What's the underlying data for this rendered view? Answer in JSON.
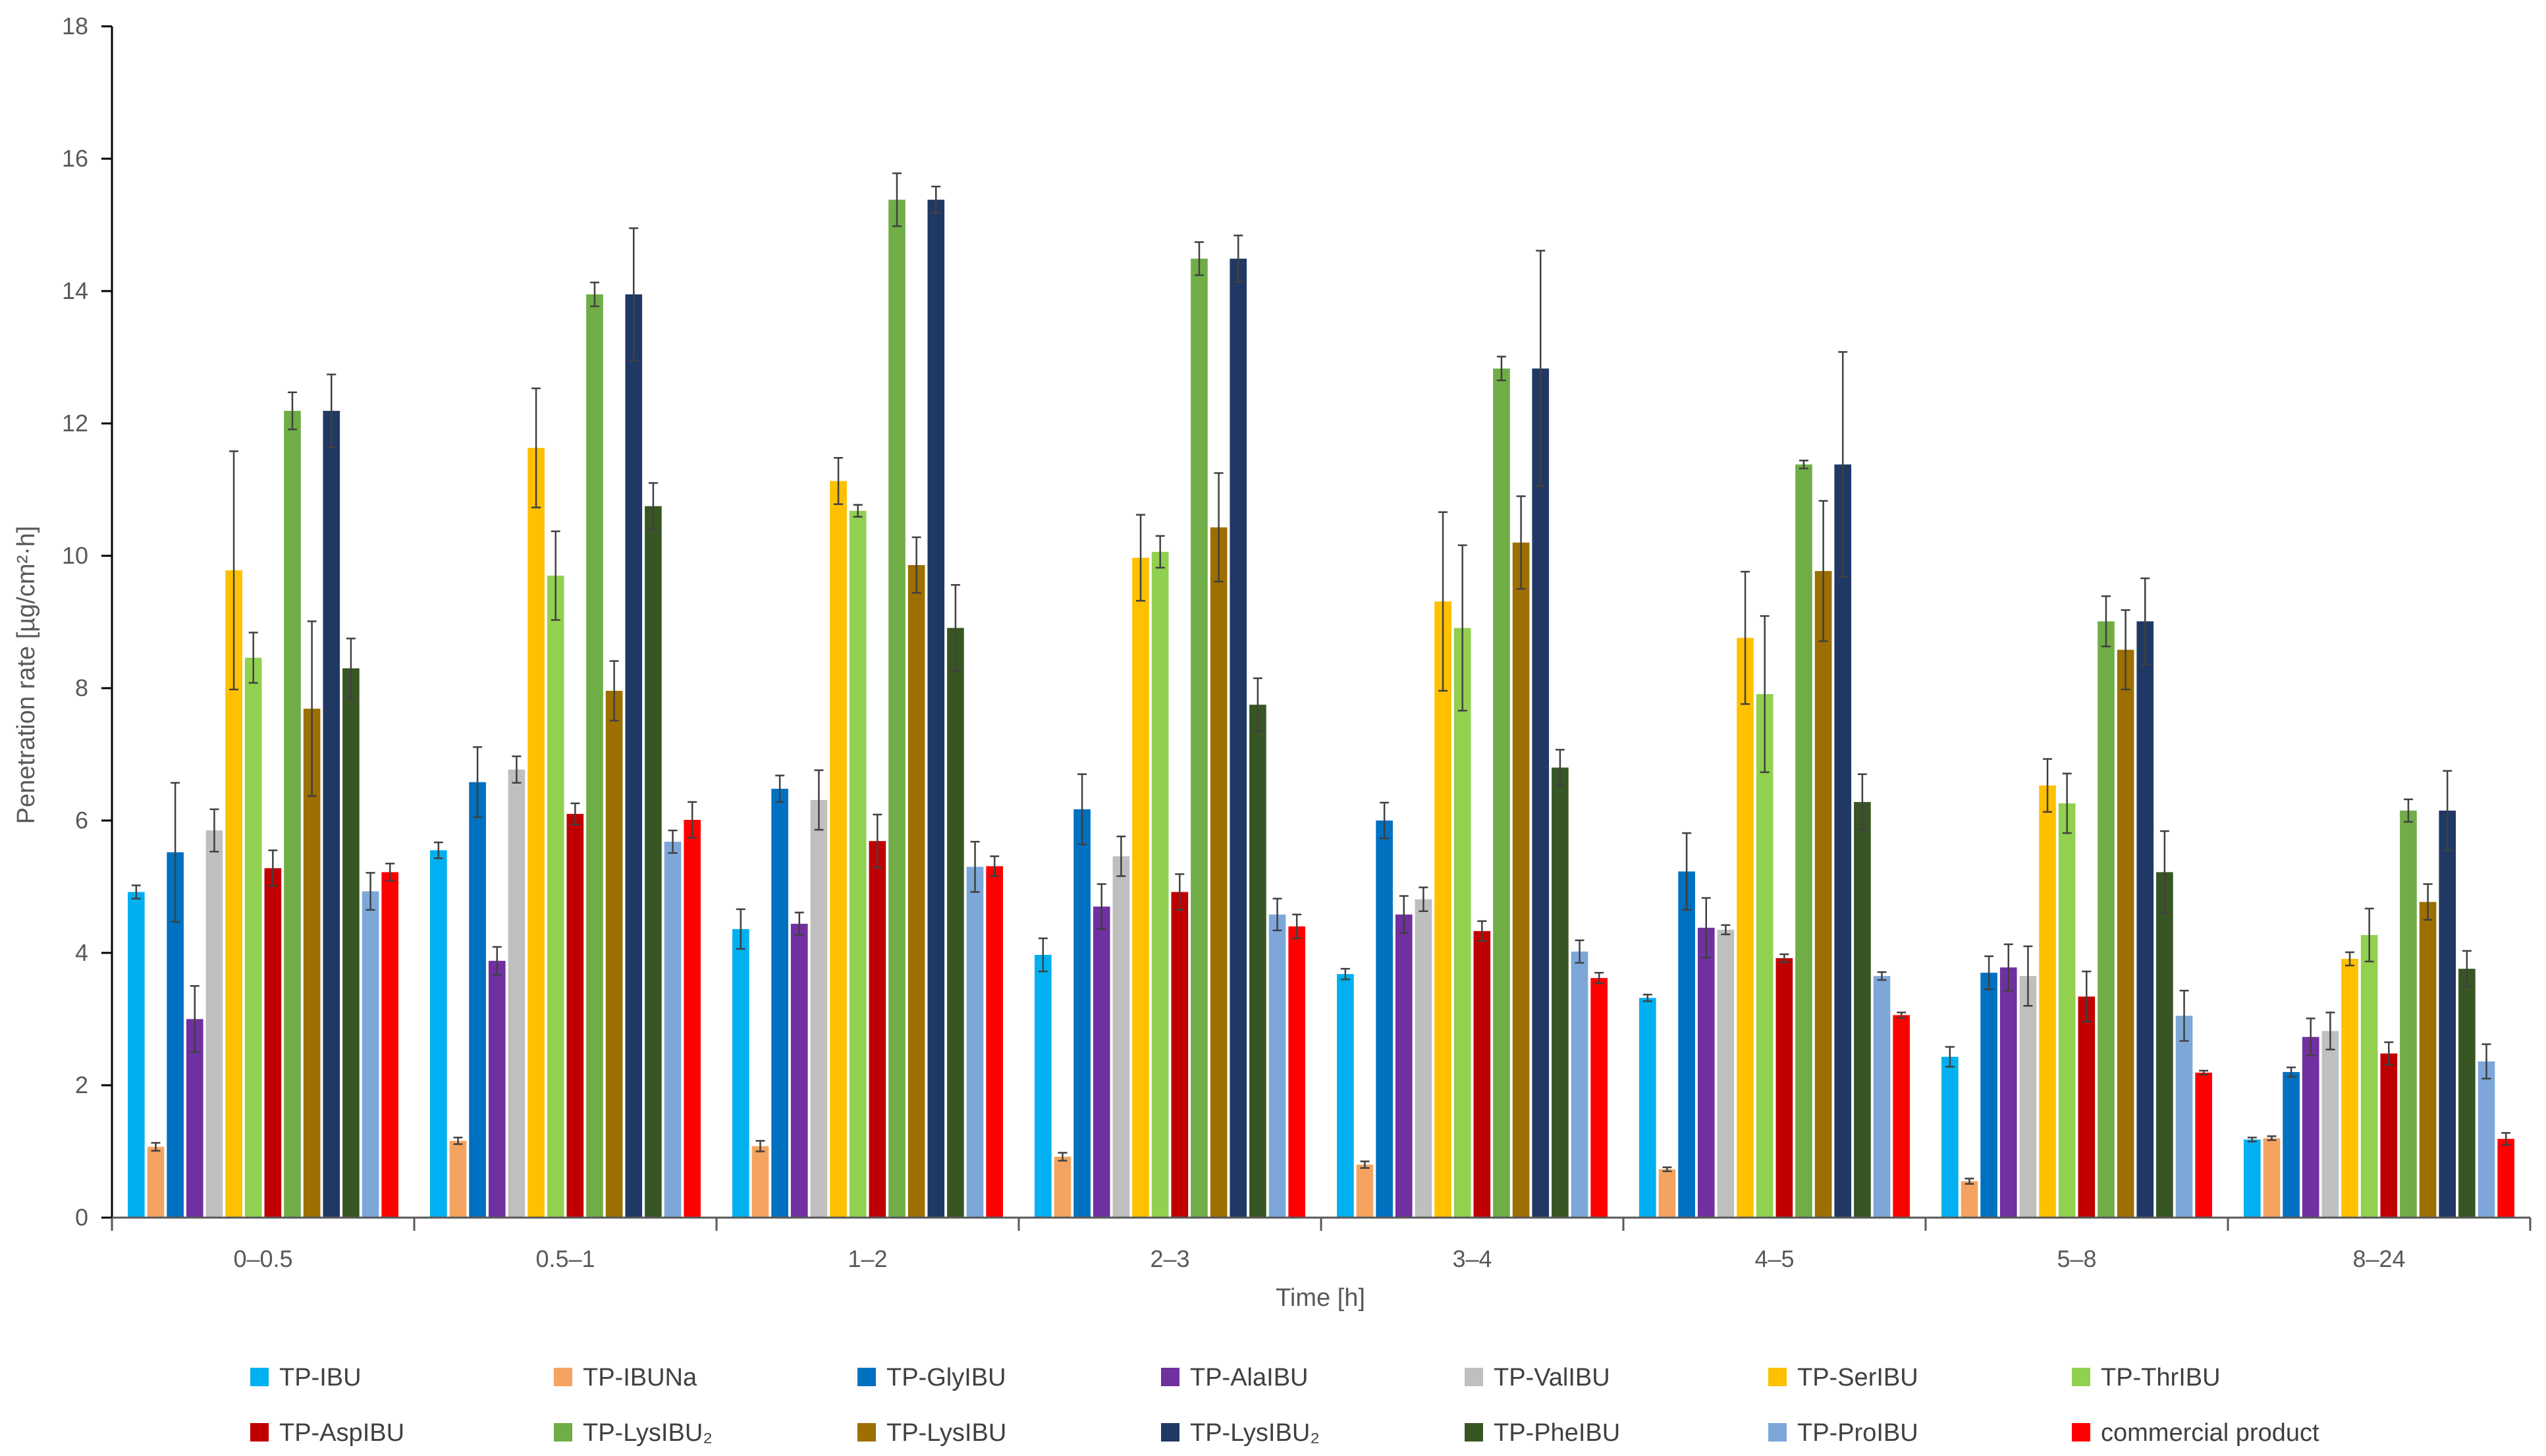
{
  "chart_data": {
    "type": "bar",
    "title": "",
    "xlabel": "Time [h]",
    "ylabel": "Penetration rate [µg/cm²·h]",
    "ylim": [
      0,
      18
    ],
    "yticks": [
      0,
      2,
      4,
      6,
      8,
      10,
      12,
      14,
      16,
      18
    ],
    "grid": false,
    "legend_position": "bottom",
    "categories": [
      "0–0.5",
      "0.5–1",
      "1–2",
      "2–3",
      "3–4",
      "4–5",
      "5–8",
      "8–24"
    ],
    "series": [
      {
        "name": "TP-IBU",
        "color": "#00B0F0",
        "values": [
          4.92,
          5.55,
          4.36,
          3.97,
          3.68,
          3.32,
          2.43,
          1.18
        ],
        "errors": [
          0.1,
          0.12,
          0.3,
          0.25,
          0.08,
          0.05,
          0.15,
          0.03
        ]
      },
      {
        "name": "TP-IBUNa",
        "color": "#F4A460",
        "values": [
          1.07,
          1.16,
          1.08,
          0.92,
          0.8,
          0.73,
          0.55,
          1.2
        ],
        "errors": [
          0.06,
          0.05,
          0.08,
          0.06,
          0.05,
          0.03,
          0.04,
          0.03
        ]
      },
      {
        "name": "TP-GlyIBU",
        "color": "#0070C0",
        "values": [
          5.52,
          6.58,
          6.48,
          6.17,
          6.0,
          5.23,
          3.7,
          2.2
        ],
        "errors": [
          1.05,
          0.53,
          0.2,
          0.53,
          0.27,
          0.58,
          0.25,
          0.07
        ]
      },
      {
        "name": "TP-AlaIBU",
        "color": "#7030A0",
        "values": [
          3.0,
          3.88,
          4.44,
          4.7,
          4.58,
          4.38,
          3.78,
          2.73
        ],
        "errors": [
          0.5,
          0.21,
          0.17,
          0.34,
          0.28,
          0.45,
          0.35,
          0.28
        ]
      },
      {
        "name": "TP-ValIBU",
        "color": "#BFBFBF",
        "values": [
          5.85,
          6.77,
          6.31,
          5.46,
          4.81,
          4.35,
          3.65,
          2.82
        ],
        "errors": [
          0.32,
          0.2,
          0.45,
          0.3,
          0.18,
          0.07,
          0.45,
          0.28
        ]
      },
      {
        "name": "TP-SerIBU",
        "color": "#FFC000",
        "values": [
          9.78,
          11.63,
          11.13,
          9.97,
          9.31,
          8.76,
          6.53,
          3.91
        ],
        "errors": [
          1.8,
          0.9,
          0.35,
          0.65,
          1.35,
          1.0,
          0.4,
          0.1
        ]
      },
      {
        "name": "TP-ThrIBU",
        "color": "#92D050",
        "values": [
          8.46,
          9.7,
          10.68,
          10.06,
          8.91,
          7.91,
          6.26,
          4.27
        ],
        "errors": [
          0.38,
          0.67,
          0.09,
          0.24,
          1.25,
          1.18,
          0.45,
          0.4
        ]
      },
      {
        "name": "TP-AspIBU",
        "color": "#C00000",
        "values": [
          5.28,
          6.1,
          5.69,
          4.92,
          4.33,
          3.92,
          3.34,
          2.48
        ],
        "errors": [
          0.27,
          0.16,
          0.4,
          0.27,
          0.15,
          0.06,
          0.38,
          0.17
        ]
      },
      {
        "name": "TP-LysIBU₂",
        "color": "#70AD47",
        "values": [
          12.19,
          13.95,
          15.38,
          14.49,
          12.83,
          11.38,
          9.01,
          6.15
        ],
        "errors": [
          0.28,
          0.18,
          0.4,
          0.25,
          0.18,
          0.06,
          0.38,
          0.17
        ]
      },
      {
        "name": "TP-LysIBU",
        "color": "#9C6F00",
        "values": [
          7.69,
          7.96,
          9.86,
          10.43,
          10.2,
          9.77,
          8.58,
          4.77
        ],
        "errors": [
          1.32,
          0.45,
          0.42,
          0.82,
          0.7,
          1.06,
          0.6,
          0.27
        ]
      },
      {
        "name": "TP-LysIBU₂",
        "color": "#203864",
        "values": [
          12.19,
          13.95,
          15.38,
          14.49,
          12.83,
          11.38,
          9.01,
          6.15
        ],
        "errors": [
          0.55,
          1.0,
          0.2,
          0.35,
          1.78,
          1.7,
          0.65,
          0.6
        ]
      },
      {
        "name": "TP-PheIBU",
        "color": "#375623",
        "values": [
          8.3,
          10.75,
          8.91,
          7.75,
          6.8,
          6.28,
          5.22,
          3.76
        ],
        "errors": [
          0.45,
          0.35,
          0.65,
          0.4,
          0.27,
          0.42,
          0.62,
          0.27
        ]
      },
      {
        "name": "TP-ProIBU",
        "color": "#7DA7D9",
        "values": [
          4.93,
          5.68,
          5.3,
          4.58,
          4.02,
          3.65,
          3.05,
          2.36
        ],
        "errors": [
          0.28,
          0.17,
          0.38,
          0.24,
          0.17,
          0.06,
          0.38,
          0.26
        ]
      },
      {
        "name": "commercial product",
        "color": "#FF0000",
        "values": [
          5.22,
          6.01,
          5.31,
          4.4,
          3.62,
          3.06,
          2.19,
          1.19
        ],
        "errors": [
          0.13,
          0.27,
          0.15,
          0.18,
          0.08,
          0.04,
          0.03,
          0.09
        ]
      }
    ]
  }
}
